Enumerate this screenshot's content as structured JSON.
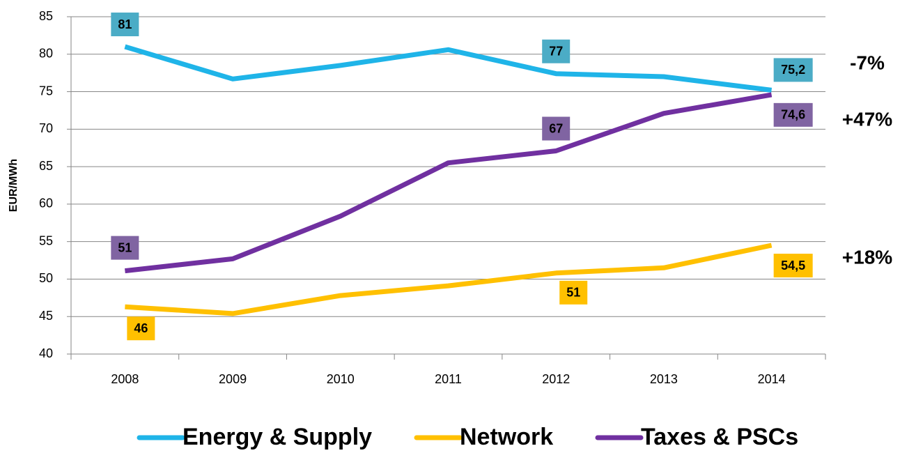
{
  "chart_data": {
    "type": "line",
    "y_label": "EUR/MWh",
    "categories": [
      "2008",
      "2009",
      "2010",
      "2011",
      "2012",
      "2013",
      "2014"
    ],
    "ylim": [
      40,
      85
    ],
    "yticks": [
      40,
      45,
      50,
      55,
      60,
      65,
      70,
      75,
      80,
      85
    ],
    "grid": true,
    "legend": "bottom",
    "series": [
      {
        "name": "Energy & Supply",
        "color": "#1fb4e8",
        "label_color": "#4bacc6",
        "label_text_color": "#ffffff",
        "values": [
          81,
          76.7,
          78.5,
          80.6,
          77.4,
          77,
          75.2
        ],
        "value_labels": [
          "81",
          null,
          null,
          null,
          "77",
          null,
          "75,2"
        ],
        "annotation": "-7%"
      },
      {
        "name": "Network",
        "color": "#ffc000",
        "label_color": "#ffc000",
        "label_text_color": "#000000",
        "values": [
          46.3,
          45.4,
          47.8,
          49.1,
          50.8,
          51.5,
          54.5
        ],
        "value_labels": [
          "46",
          null,
          null,
          null,
          "51",
          null,
          "54,5"
        ],
        "annotation": "+18%"
      },
      {
        "name": "Taxes & PSCs",
        "color": "#7030a0",
        "label_color": "#8064a2",
        "label_text_color": "#ffffff",
        "values": [
          51.1,
          52.7,
          58.4,
          65.5,
          67.1,
          72.1,
          74.6
        ],
        "value_labels": [
          "51",
          null,
          null,
          null,
          "67",
          null,
          "74,6"
        ],
        "annotation": "+47%"
      }
    ]
  }
}
